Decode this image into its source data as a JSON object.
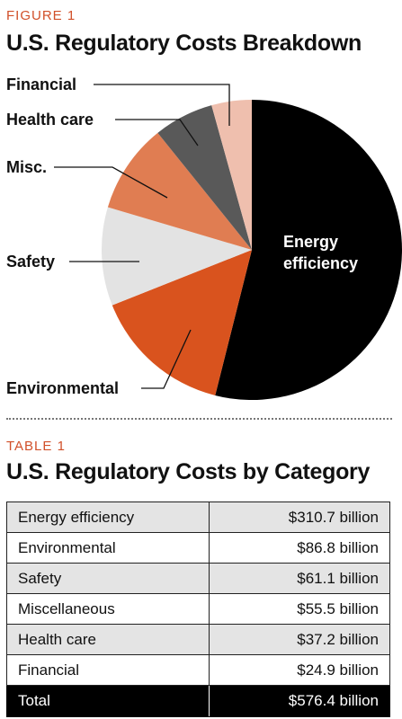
{
  "figure": {
    "label": "FIGURE 1",
    "title": "U.S. Regulatory Costs Breakdown"
  },
  "table": {
    "label": "TABLE 1",
    "title": "U.S. Regulatory Costs by Category",
    "rows": [
      {
        "category": "Energy efficiency",
        "value": "$310.7 billion"
      },
      {
        "category": "Environmental",
        "value": "$86.8 billion"
      },
      {
        "category": "Safety",
        "value": "$61.1 billion"
      },
      {
        "category": "Miscellaneous",
        "value": "$55.5 billion"
      },
      {
        "category": "Health care",
        "value": "$37.2 billion"
      },
      {
        "category": "Financial",
        "value": "$24.9 billion"
      }
    ],
    "total": {
      "category": "Total",
      "value": "$576.4 billion"
    }
  },
  "chart_data": {
    "type": "pie",
    "title": "U.S. Regulatory Costs Breakdown",
    "slices": [
      {
        "label": "Energy efficiency",
        "value": 310.7,
        "color": "#000000",
        "label_lines": [
          "Energy",
          "efficiency"
        ]
      },
      {
        "label": "Environmental",
        "value": 86.8,
        "color": "#d9531e"
      },
      {
        "label": "Safety",
        "value": 61.1,
        "color": "#e3e3e3"
      },
      {
        "label": "Misc.",
        "value": 55.5,
        "color": "#e07d52"
      },
      {
        "label": "Health care",
        "value": 37.2,
        "color": "#595959"
      },
      {
        "label": "Financial",
        "value": 24.9,
        "color": "#efbfae"
      }
    ],
    "units": "billion dollars"
  }
}
